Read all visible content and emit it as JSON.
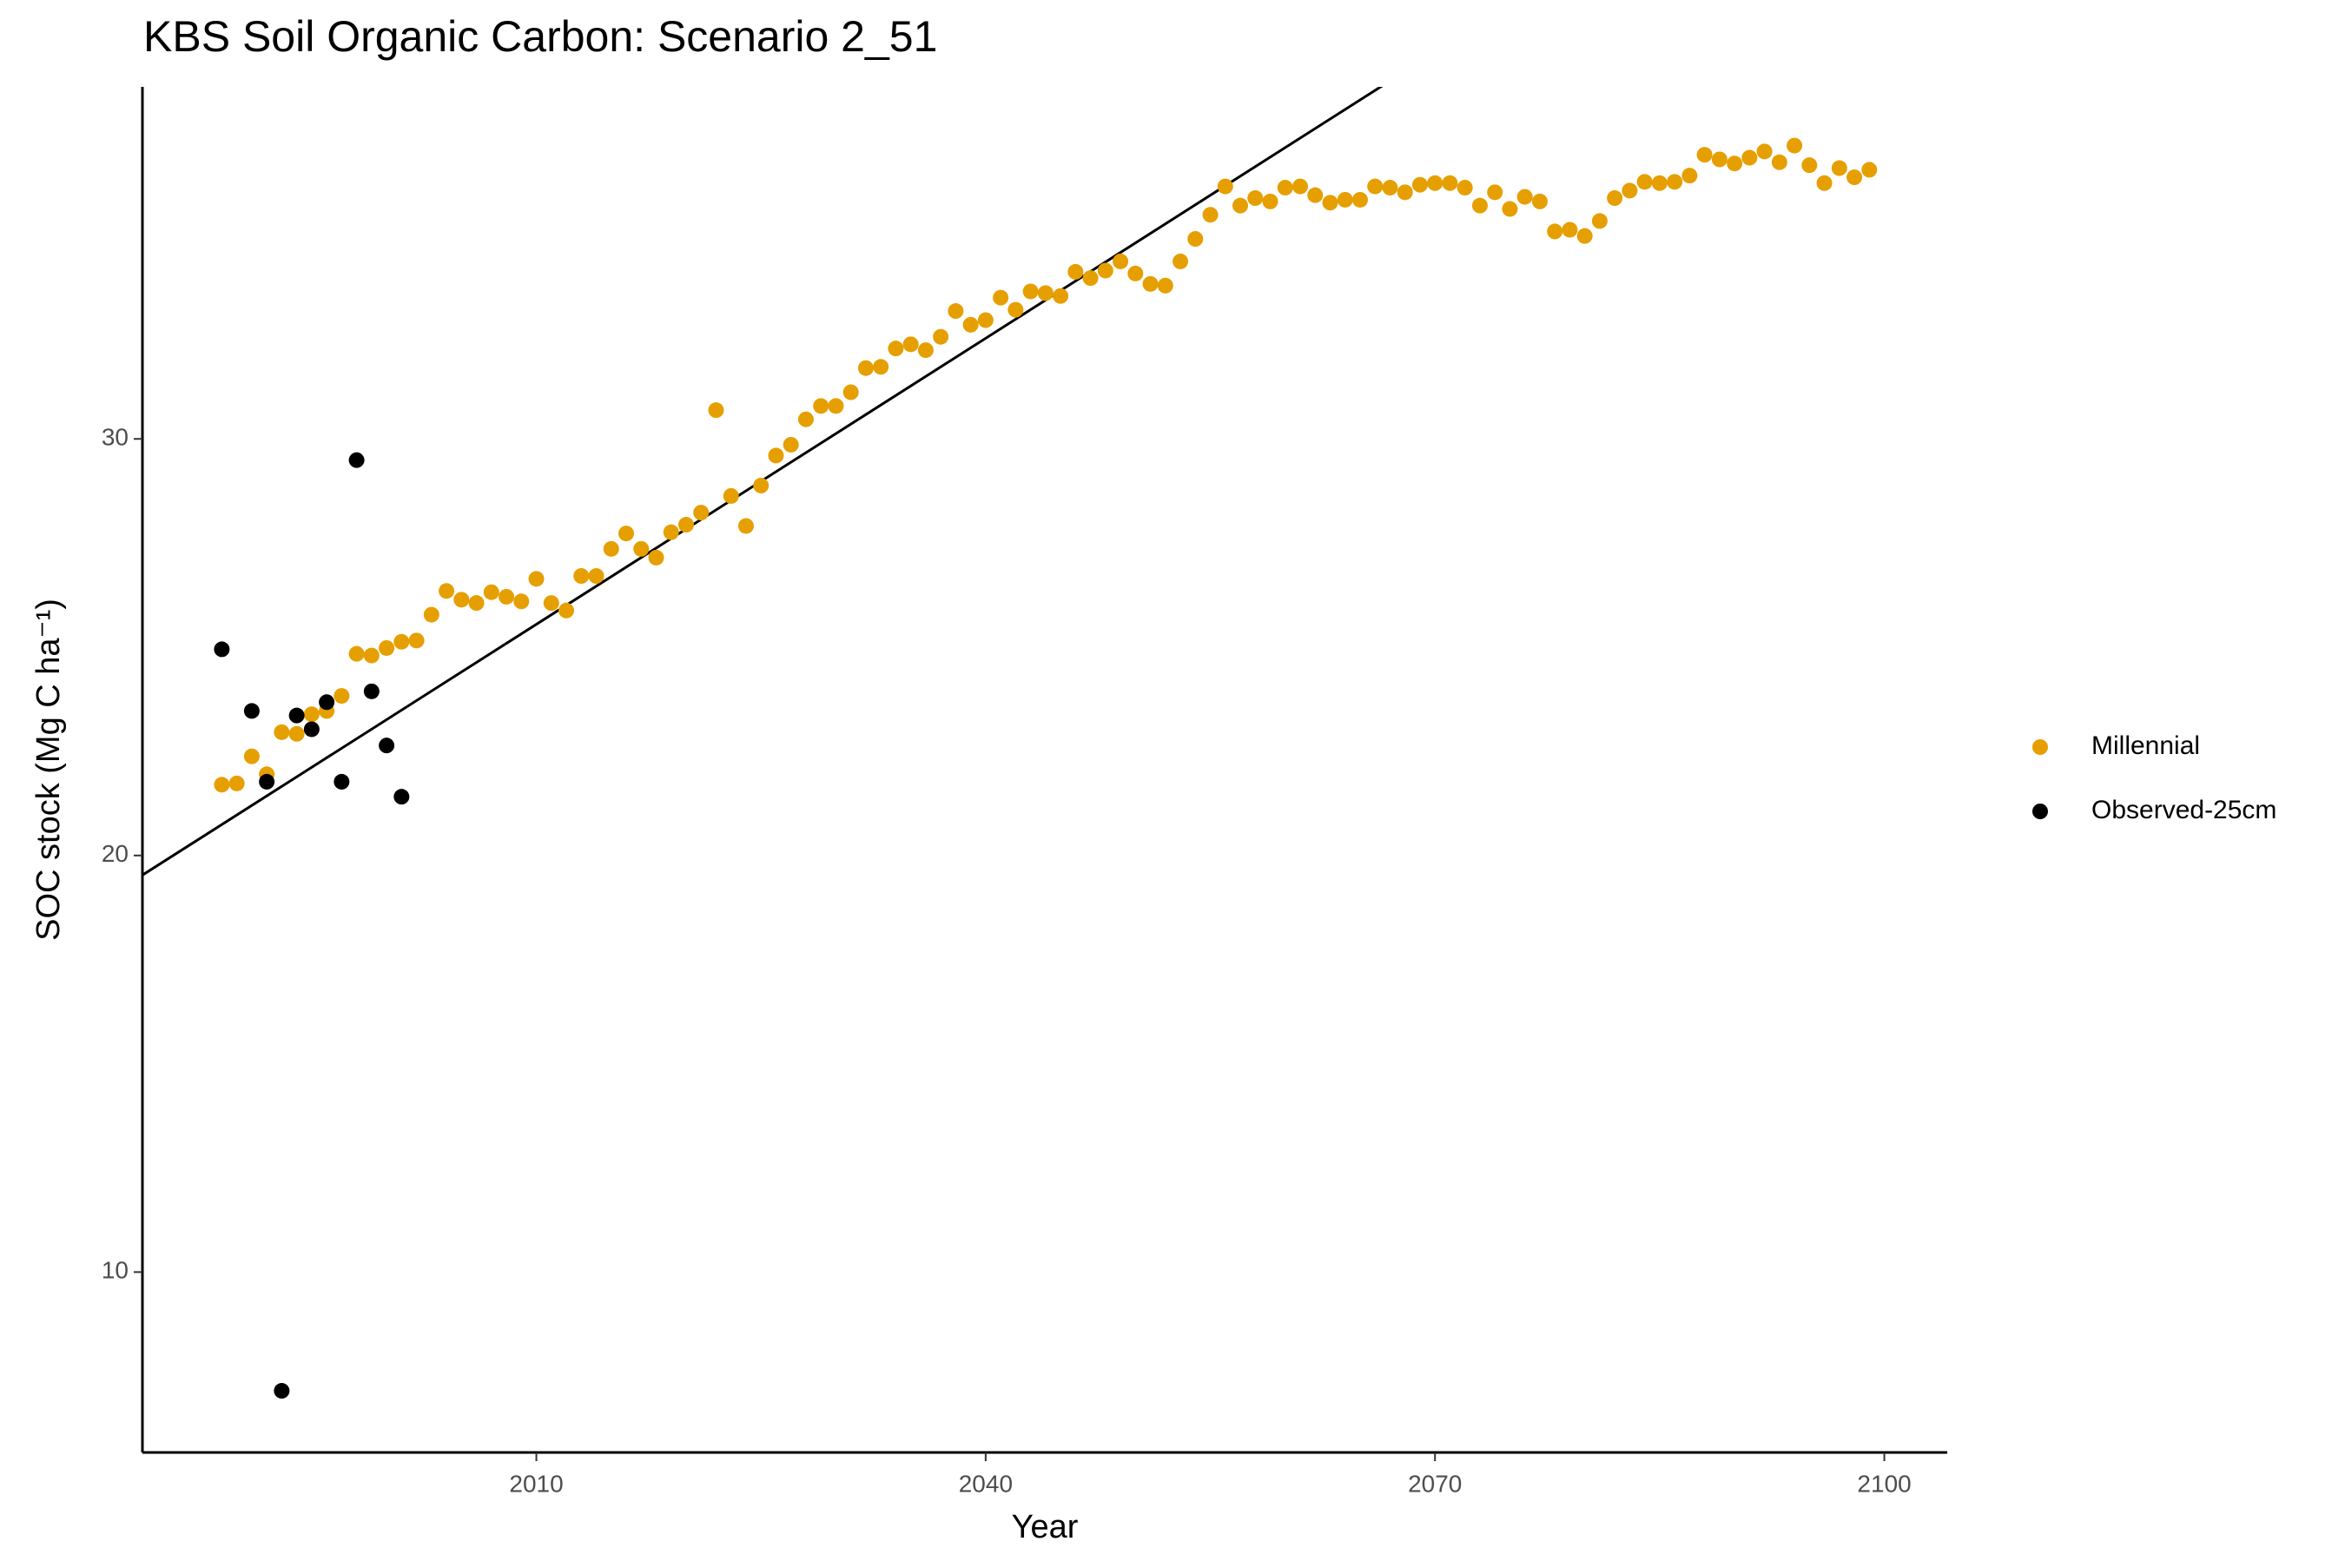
{
  "chart_data": {
    "type": "scatter",
    "title": "KBS Soil Organic Carbon: Scenario  2_51",
    "x_label": "Year",
    "y_label": "SOC stock (Mg C ha⁻¹)",
    "xlim": [
      1983.7,
      2104.2
    ],
    "ylim": [
      5.67,
      38.45
    ],
    "xticks": [
      2010,
      2040,
      2070,
      2100
    ],
    "yticks": [
      10,
      20,
      30
    ],
    "grid": false,
    "legend": "right",
    "series": [
      {
        "name": "Millennial",
        "color": "#e69f00",
        "x": [
          1989,
          1990,
          1991,
          1992,
          1993,
          1994,
          1995,
          1996,
          1997,
          1998,
          1999,
          2000,
          2001,
          2002,
          2003,
          2004,
          2005,
          2006,
          2007,
          2008,
          2009,
          2010,
          2011,
          2012,
          2013,
          2014,
          2015,
          2016,
          2017,
          2018,
          2019,
          2020,
          2021,
          2022,
          2023,
          2024,
          2025,
          2026,
          2027,
          2028,
          2029,
          2030,
          2031,
          2032,
          2033,
          2034,
          2035,
          2036,
          2037,
          2038,
          2039,
          2040,
          2041,
          2042,
          2043,
          2044,
          2045,
          2046,
          2047,
          2048,
          2049,
          2050,
          2051,
          2052,
          2053,
          2054,
          2055,
          2056,
          2057,
          2058,
          2059,
          2060,
          2061,
          2062,
          2063,
          2064,
          2065,
          2066,
          2067,
          2068,
          2069,
          2070,
          2071,
          2072,
          2073,
          2074,
          2075,
          2076,
          2077,
          2078,
          2079,
          2080,
          2081,
          2082,
          2083,
          2084,
          2085,
          2086,
          2087,
          2088,
          2089,
          2090,
          2091,
          2092,
          2093,
          2094,
          2095,
          2096,
          2097,
          2098,
          2099
        ],
        "values": [
          21.7,
          21.73,
          22.38,
          21.95,
          22.96,
          22.92,
          23.39,
          23.47,
          23.83,
          24.84,
          24.8,
          24.98,
          25.13,
          25.16,
          25.78,
          26.35,
          26.14,
          26.06,
          26.32,
          26.21,
          26.1,
          26.64,
          26.06,
          25.88,
          26.71,
          26.71,
          27.36,
          27.73,
          27.36,
          27.15,
          27.76,
          27.94,
          28.23,
          30.69,
          28.63,
          27.91,
          28.88,
          29.6,
          29.86,
          30.47,
          30.79,
          30.79,
          31.12,
          31.7,
          31.73,
          32.17,
          32.27,
          32.13,
          32.45,
          33.07,
          32.74,
          32.85,
          33.39,
          33.1,
          33.54,
          33.5,
          33.43,
          34.01,
          33.86,
          34.04,
          34.26,
          33.97,
          33.72,
          33.68,
          34.26,
          34.8,
          35.38,
          36.06,
          35.6,
          35.78,
          35.7,
          36.03,
          36.06,
          35.85,
          35.67,
          35.74,
          35.74,
          36.06,
          36.03,
          35.92,
          36.1,
          36.14,
          36.14,
          36.03,
          35.6,
          35.92,
          35.52,
          35.81,
          35.7,
          34.98,
          35.02,
          34.87,
          35.23,
          35.78,
          35.96,
          36.17,
          36.14,
          36.17,
          36.32,
          36.82,
          36.71,
          36.61,
          36.75,
          36.9,
          36.64,
          37.04,
          36.57,
          36.14,
          36.5,
          36.28,
          36.46
        ]
      },
      {
        "name": "Observed-25cm",
        "color": "#000000",
        "x": [
          1989,
          1991,
          1992,
          1993,
          1994,
          1995,
          1996,
          1997,
          1998,
          1999,
          2000,
          2001
        ],
        "values": [
          24.95,
          23.47,
          21.77,
          7.15,
          23.36,
          23.03,
          23.68,
          21.77,
          29.49,
          23.94,
          22.64,
          21.41
        ]
      }
    ],
    "lines": [
      {
        "color": "#000000",
        "x": [
          1983.7,
          2066.5
        ],
        "values": [
          19.53,
          38.48
        ]
      }
    ]
  }
}
